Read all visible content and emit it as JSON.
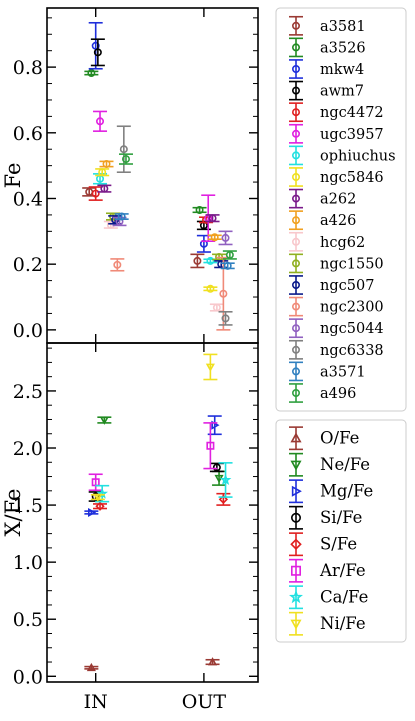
{
  "chart_data": [
    {
      "type": "scatter",
      "panel": "top",
      "xlabel": "",
      "ylabel": "Fe",
      "ylim": [
        -0.04,
        0.98
      ],
      "yticks": [
        0.0,
        0.2,
        0.4,
        0.6,
        0.8
      ],
      "categories": [
        "IN",
        "OUT"
      ],
      "legend_placement": "outside-right-top",
      "series": [
        {
          "name": "a3581",
          "color": "#9a3a34",
          "marker": "circle",
          "points": [
            {
              "x": 0.94,
              "y": 0.42,
              "err": 0.012
            },
            {
              "x": 1.94,
              "y": 0.21,
              "err": 0.02
            }
          ]
        },
        {
          "name": "a3526",
          "color": "#218a21",
          "marker": "circle",
          "points": [
            {
              "x": 0.96,
              "y": 0.782,
              "err": 0.005
            },
            {
              "x": 1.96,
              "y": 0.365,
              "err": 0.007
            }
          ]
        },
        {
          "name": "mkw4",
          "color": "#1f2fdb",
          "marker": "circle",
          "points": [
            {
              "x": 1.0,
              "y": 0.865,
              "err": 0.07
            },
            {
              "x": 2.0,
              "y": 0.262,
              "err": 0.025
            }
          ]
        },
        {
          "name": "awm7",
          "color": "#000000",
          "marker": "circle",
          "points": [
            {
              "x": 1.02,
              "y": 0.845,
              "err": 0.04
            },
            {
              "x": 2.0,
              "y": 0.318,
              "err": 0.012
            }
          ]
        },
        {
          "name": "ngc4472",
          "color": "#e02020",
          "marker": "circle",
          "points": [
            {
              "x": 1.0,
              "y": 0.415,
              "err": 0.02
            },
            {
              "x": 2.02,
              "y": 0.335,
              "err": 0.008
            }
          ]
        },
        {
          "name": "ugc3957",
          "color": "#e020e0",
          "marker": "circle",
          "points": [
            {
              "x": 1.04,
              "y": 0.635,
              "err": 0.03
            },
            {
              "x": 2.04,
              "y": 0.34,
              "err": 0.07
            }
          ]
        },
        {
          "name": "ophiuchus",
          "color": "#22e0e0",
          "marker": "circle",
          "points": [
            {
              "x": 1.04,
              "y": 0.46,
              "err": 0.015
            },
            {
              "x": 2.06,
              "y": 0.21,
              "err": 0.005
            }
          ]
        },
        {
          "name": "ngc5846",
          "color": "#f0e020",
          "marker": "circle",
          "points": [
            {
              "x": 1.06,
              "y": 0.48,
              "err": 0.01
            },
            {
              "x": 2.06,
              "y": 0.125,
              "err": 0.005
            }
          ]
        },
        {
          "name": "a262",
          "color": "#7a1a8a",
          "marker": "circle",
          "points": [
            {
              "x": 1.08,
              "y": 0.43,
              "err": 0.01
            },
            {
              "x": 2.08,
              "y": 0.34,
              "err": 0.01
            }
          ]
        },
        {
          "name": "a426",
          "color": "#f0a020",
          "marker": "circle",
          "points": [
            {
              "x": 1.1,
              "y": 0.505,
              "err": 0.008
            },
            {
              "x": 2.1,
              "y": 0.282,
              "err": 0.006
            }
          ]
        },
        {
          "name": "hcg62",
          "color": "#f8c8cc",
          "marker": "circle",
          "points": [
            {
              "x": 1.14,
              "y": 0.32,
              "err": 0.01
            },
            {
              "x": 2.12,
              "y": 0.068,
              "err": 0.01
            }
          ]
        },
        {
          "name": "ngc1550",
          "color": "#90b020",
          "marker": "circle",
          "points": [
            {
              "x": 1.16,
              "y": 0.345,
              "err": 0.01
            },
            {
              "x": 2.14,
              "y": 0.222,
              "err": 0.008
            }
          ]
        },
        {
          "name": "ngc507",
          "color": "#0a1a8a",
          "marker": "circle",
          "points": [
            {
              "x": 1.18,
              "y": 0.335,
              "err": 0.012
            },
            {
              "x": 2.16,
              "y": 0.2,
              "err": 0.01
            }
          ]
        },
        {
          "name": "ngc2300",
          "color": "#f08a78",
          "marker": "circle",
          "points": [
            {
              "x": 1.2,
              "y": 0.198,
              "err": 0.018
            },
            {
              "x": 2.18,
              "y": 0.11,
              "err": 0.11
            }
          ]
        },
        {
          "name": "ngc5044",
          "color": "#9060c0",
          "marker": "circle",
          "points": [
            {
              "x": 1.22,
              "y": 0.33,
              "err": 0.012
            },
            {
              "x": 2.2,
              "y": 0.28,
              "err": 0.02
            }
          ]
        },
        {
          "name": "ngc6338",
          "color": "#808080",
          "marker": "circle",
          "points": [
            {
              "x": 1.26,
              "y": 0.55,
              "err": 0.07
            },
            {
              "x": 2.2,
              "y": 0.035,
              "err": 0.02
            }
          ]
        },
        {
          "name": "a3571",
          "color": "#3080c0",
          "marker": "circle",
          "points": [
            {
              "x": 1.24,
              "y": 0.345,
              "err": 0.008
            },
            {
              "x": 2.22,
              "y": 0.195,
              "err": 0.008
            }
          ]
        },
        {
          "name": "a496",
          "color": "#30a040",
          "marker": "circle",
          "points": [
            {
              "x": 1.28,
              "y": 0.52,
              "err": 0.015
            },
            {
              "x": 2.24,
              "y": 0.228,
              "err": 0.012
            }
          ]
        }
      ]
    },
    {
      "type": "scatter",
      "panel": "bottom",
      "xlabel": "",
      "ylabel": "X/Fe",
      "ylim": [
        -0.05,
        2.92
      ],
      "yticks": [
        0.0,
        0.5,
        1.0,
        1.5,
        2.0,
        2.5
      ],
      "categories": [
        "IN",
        "OUT"
      ],
      "legend_placement": "outside-right",
      "series": [
        {
          "name": "O/Fe",
          "color": "#9a3a34",
          "marker": "triangle-up",
          "points": [
            {
              "x": 0.96,
              "y": 0.075,
              "err": 0.01
            },
            {
              "x": 2.08,
              "y": 0.125,
              "err": 0.02
            }
          ]
        },
        {
          "name": "Ne/Fe",
          "color": "#218a21",
          "marker": "triangle-down",
          "points": [
            {
              "x": 1.08,
              "y": 2.245,
              "err": 0.025
            },
            {
              "x": 2.14,
              "y": 1.735,
              "err": 0.06
            }
          ]
        },
        {
          "name": "Mg/Fe",
          "color": "#1f2fdb",
          "marker": "triangle-right",
          "points": [
            {
              "x": 0.96,
              "y": 1.435,
              "err": 0.012
            },
            {
              "x": 2.1,
              "y": 2.2,
              "err": 0.08
            }
          ]
        },
        {
          "name": "Si/Fe",
          "color": "#000000",
          "marker": "circle",
          "points": [
            {
              "x": 1.0,
              "y": 1.575,
              "err": 0.04
            },
            {
              "x": 2.12,
              "y": 1.83,
              "err": 0.035
            }
          ]
        },
        {
          "name": "S/Fe",
          "color": "#e02020",
          "marker": "diamond",
          "points": [
            {
              "x": 1.04,
              "y": 1.49,
              "err": 0.02
            },
            {
              "x": 2.18,
              "y": 1.55,
              "err": 0.05
            }
          ]
        },
        {
          "name": "Ar/Fe",
          "color": "#e020e0",
          "marker": "square",
          "points": [
            {
              "x": 1.0,
              "y": 1.7,
              "err": 0.07
            },
            {
              "x": 2.06,
              "y": 2.02,
              "err": 0.2
            }
          ]
        },
        {
          "name": "Ca/Fe",
          "color": "#22e0e0",
          "marker": "star",
          "points": [
            {
              "x": 1.06,
              "y": 1.6,
              "err": 0.07
            },
            {
              "x": 2.2,
              "y": 1.72,
              "err": 0.15
            }
          ]
        },
        {
          "name": "Ni/Fe",
          "color": "#f0e020",
          "marker": "triangle-down",
          "points": [
            {
              "x": 1.02,
              "y": 1.57,
              "err": 0.02
            },
            {
              "x": 2.06,
              "y": 2.71,
              "err": 0.11
            }
          ]
        }
      ]
    }
  ]
}
